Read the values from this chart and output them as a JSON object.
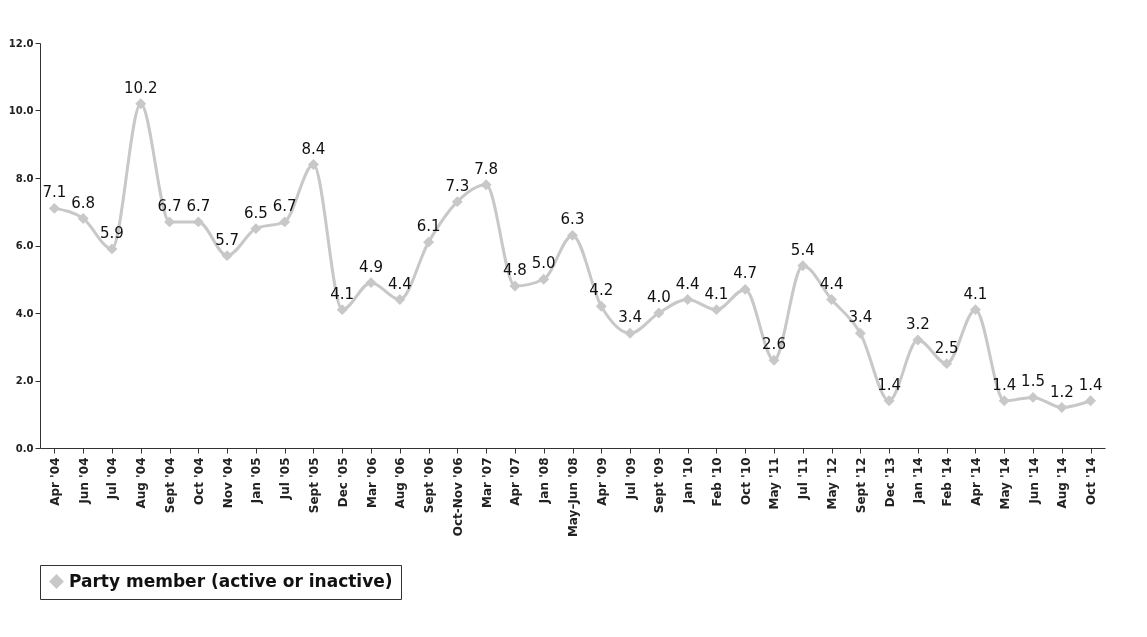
{
  "chart_data": {
    "type": "line",
    "categories": [
      "Apr '04",
      "Jun '04",
      "Jul '04",
      "Aug '04",
      "Sept '04",
      "Oct '04",
      "Nov '04",
      "Jan '05",
      "Jul '05",
      "Sept '05",
      "Dec '05",
      "Mar '06",
      "Aug '06",
      "Sept '06",
      "Oct-Nov '06",
      "Mar '07",
      "Apr '07",
      "Jan '08",
      "May–Jun '08",
      "Apr '09",
      "Jul '09",
      "Sept '09",
      "Jan '10",
      "Feb '10",
      "Oct '10",
      "May '11",
      "Jul '11",
      "May '12",
      "Sept '12",
      "Dec '13",
      "Jan '14",
      "Feb '14",
      "Apr '14",
      "May '14",
      "Jun '14",
      "Aug '14",
      "Oct '14"
    ],
    "series": [
      {
        "name": "Party member (active or inactive)",
        "color": "#c8c8c8",
        "values": [
          7.1,
          6.8,
          5.9,
          10.2,
          6.7,
          6.7,
          5.7,
          6.5,
          6.7,
          8.4,
          4.1,
          4.9,
          4.4,
          6.1,
          7.3,
          7.8,
          4.8,
          5.0,
          6.3,
          4.2,
          3.4,
          4.0,
          4.4,
          4.1,
          4.7,
          2.6,
          5.4,
          4.4,
          3.4,
          1.4,
          3.2,
          2.5,
          4.1,
          1.4,
          1.5,
          1.2,
          1.4
        ],
        "value_labels": [
          "7.1",
          "6.8",
          "5.9",
          "10.2",
          "6.7",
          "6.7",
          "5.7",
          "6.5",
          "6.7",
          "8.4",
          "4.1",
          "4.9",
          "4.4",
          "6.1",
          "7.3",
          "7.8",
          "4.8",
          "5.0",
          "6.3",
          "4.2",
          "3.4",
          "4.0",
          "4.4",
          "4.1",
          "4.7",
          "2.6",
          "5.4",
          "4.4",
          "3.4",
          "1.4",
          "3.2",
          "2.5",
          "4.1",
          "1.4",
          "1.5",
          "1.2",
          "1.4"
        ]
      }
    ],
    "ylim": [
      0,
      12
    ],
    "yticks": [
      {
        "value": 0,
        "label": "0.0"
      },
      {
        "value": 2,
        "label": "2.0"
      },
      {
        "value": 4,
        "label": "4.0"
      },
      {
        "value": 6,
        "label": "6.0"
      },
      {
        "value": 8,
        "label": "8.0"
      },
      {
        "value": 10,
        "label": "10.0"
      },
      {
        "value": 12,
        "label": "12.0"
      }
    ],
    "grid": false,
    "legend": "bottom",
    "marker": "diamond",
    "line_style": "solid"
  }
}
